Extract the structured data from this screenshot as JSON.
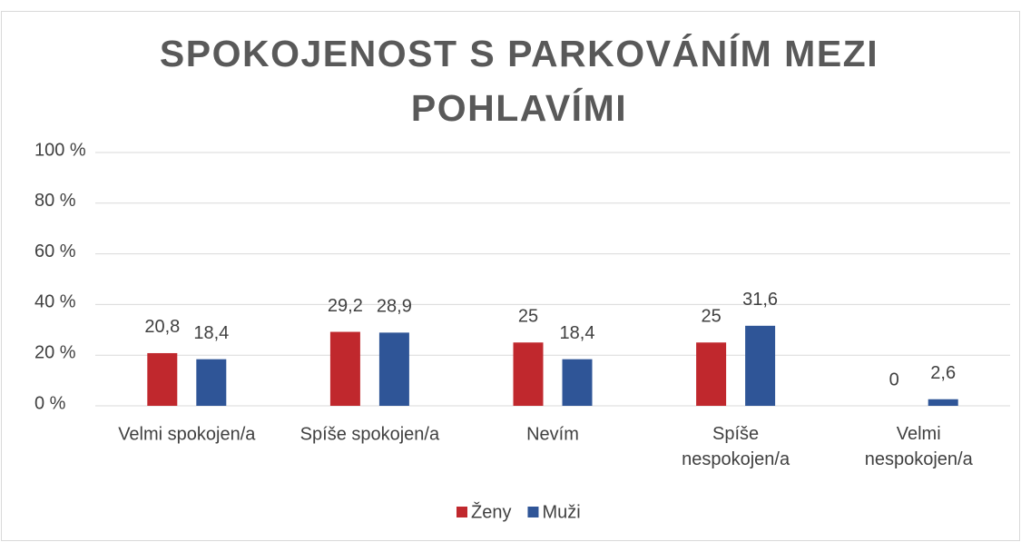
{
  "chart_data": {
    "type": "bar",
    "title": "SPOKOJENOST S PARKOVÁNÍM MEZI POHLAVÍMI",
    "categories": [
      "Velmi spokojen/a",
      "Spíše spokojen/a",
      "Nevím",
      "Spíše nespokojen/a",
      "Velmi nespokojen/a"
    ],
    "series": [
      {
        "name": "Ženy",
        "color": "#c0282d",
        "values": [
          20.8,
          29.2,
          25,
          25,
          0
        ],
        "value_labels": [
          "20,8",
          "29,2",
          "25",
          "25",
          "0"
        ]
      },
      {
        "name": "Muži",
        "color": "#2f5597",
        "values": [
          18.4,
          28.9,
          18.4,
          31.6,
          2.6
        ],
        "value_labels": [
          "18,4",
          "28,9",
          "18,4",
          "31,6",
          "2,6"
        ]
      }
    ],
    "ylim": [
      0,
      100
    ],
    "yticks": [
      {
        "value": 0,
        "label": "0 %"
      },
      {
        "value": 20,
        "label": "20 %"
      },
      {
        "value": 40,
        "label": "40 %"
      },
      {
        "value": 60,
        "label": "60 %"
      },
      {
        "value": 80,
        "label": "80 %"
      },
      {
        "value": 100,
        "label": "100 %"
      }
    ],
    "grid": true,
    "legend": "bottom"
  }
}
